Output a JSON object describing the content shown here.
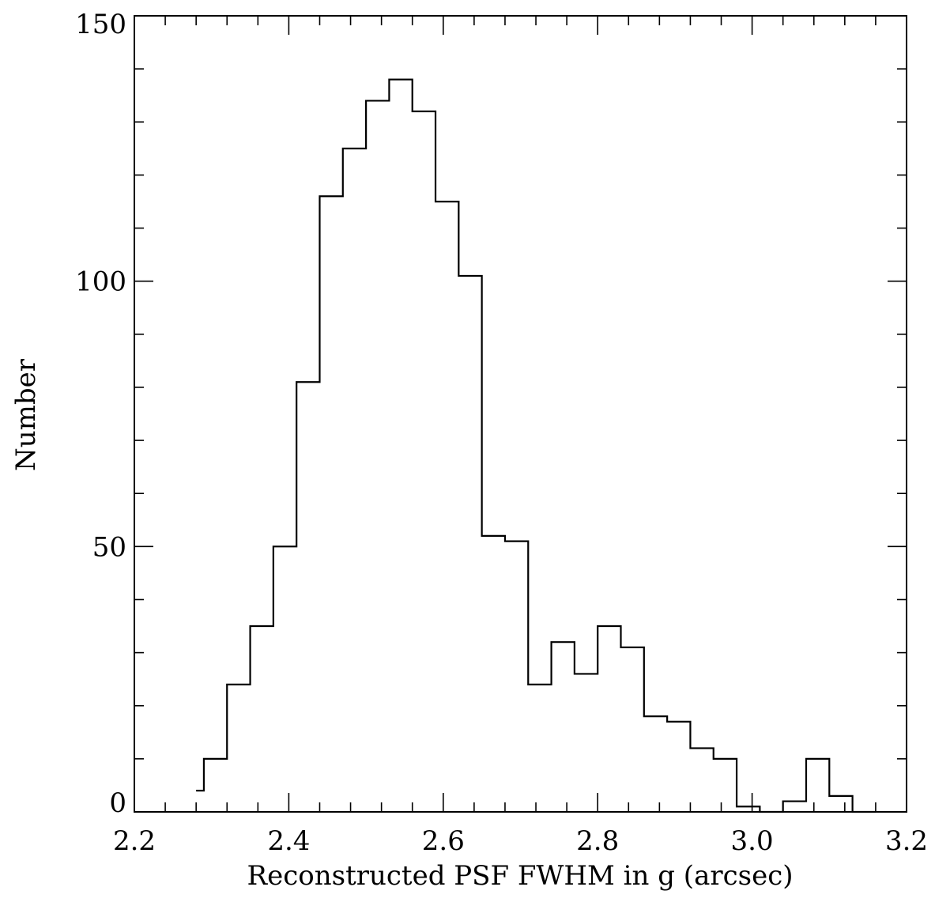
{
  "chart_data": {
    "type": "histogram",
    "title": "",
    "xlabel": "Reconstructed PSF FWHM in g (arcsec)",
    "ylabel": "Number",
    "xlim": [
      2.2,
      3.2
    ],
    "ylim": [
      0,
      150
    ],
    "x_ticks": [
      "2.2",
      "2.4",
      "2.6",
      "2.8",
      "3.0",
      "3.2"
    ],
    "y_ticks": [
      "0",
      "50",
      "100",
      "150"
    ],
    "grid": false,
    "bin_width": 0.03,
    "bin_start": 2.29,
    "counts": [
      10,
      24,
      35,
      50,
      81,
      116,
      125,
      134,
      138,
      132,
      115,
      101,
      52,
      51,
      24,
      32,
      26,
      35,
      31,
      18,
      17,
      12,
      10,
      1,
      0,
      2,
      10,
      3,
      0
    ],
    "stub": {
      "x": 2.28,
      "value": 4
    }
  }
}
